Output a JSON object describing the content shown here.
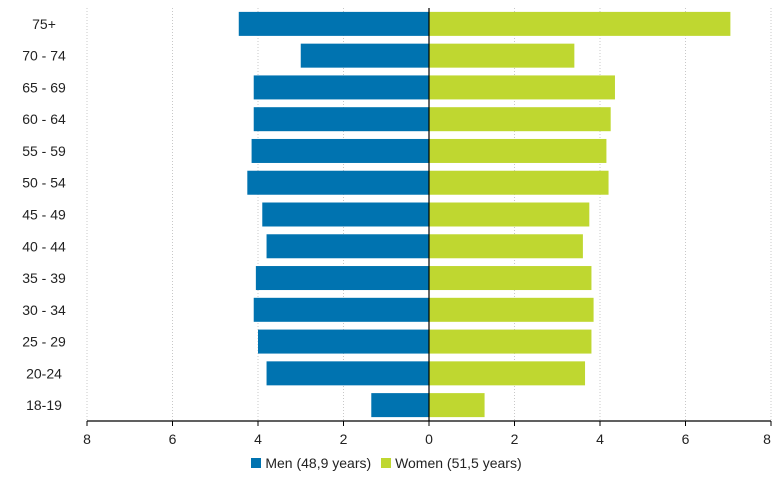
{
  "chart_data": {
    "type": "bar",
    "orientation": "horizontal-diverging",
    "categories": [
      "75+",
      "70 - 74",
      "65 - 69",
      "60 - 64",
      "55 - 59",
      "50 - 54",
      "45 - 49",
      "40 - 44",
      "35 - 39",
      "30 - 34",
      "25 - 29",
      "20-24",
      "18-19"
    ],
    "series": [
      {
        "name": "Men (48,9 years)",
        "color": "#0073b0",
        "values": [
          4.45,
          3.0,
          4.1,
          4.1,
          4.15,
          4.25,
          3.9,
          3.8,
          4.05,
          4.1,
          4.0,
          3.8,
          1.35
        ]
      },
      {
        "name": "Women (51,5 years)",
        "color": "#bfd730",
        "values": [
          7.05,
          3.4,
          4.35,
          4.25,
          4.15,
          4.2,
          3.75,
          3.6,
          3.8,
          3.85,
          3.8,
          3.65,
          1.3
        ]
      }
    ],
    "xlim": [
      -8,
      8
    ],
    "x_tick_labels": [
      "8",
      "6",
      "4",
      "2",
      "0",
      "2",
      "4",
      "6",
      "8"
    ],
    "grid": "vertical dotted",
    "legend_position": "bottom-center"
  }
}
